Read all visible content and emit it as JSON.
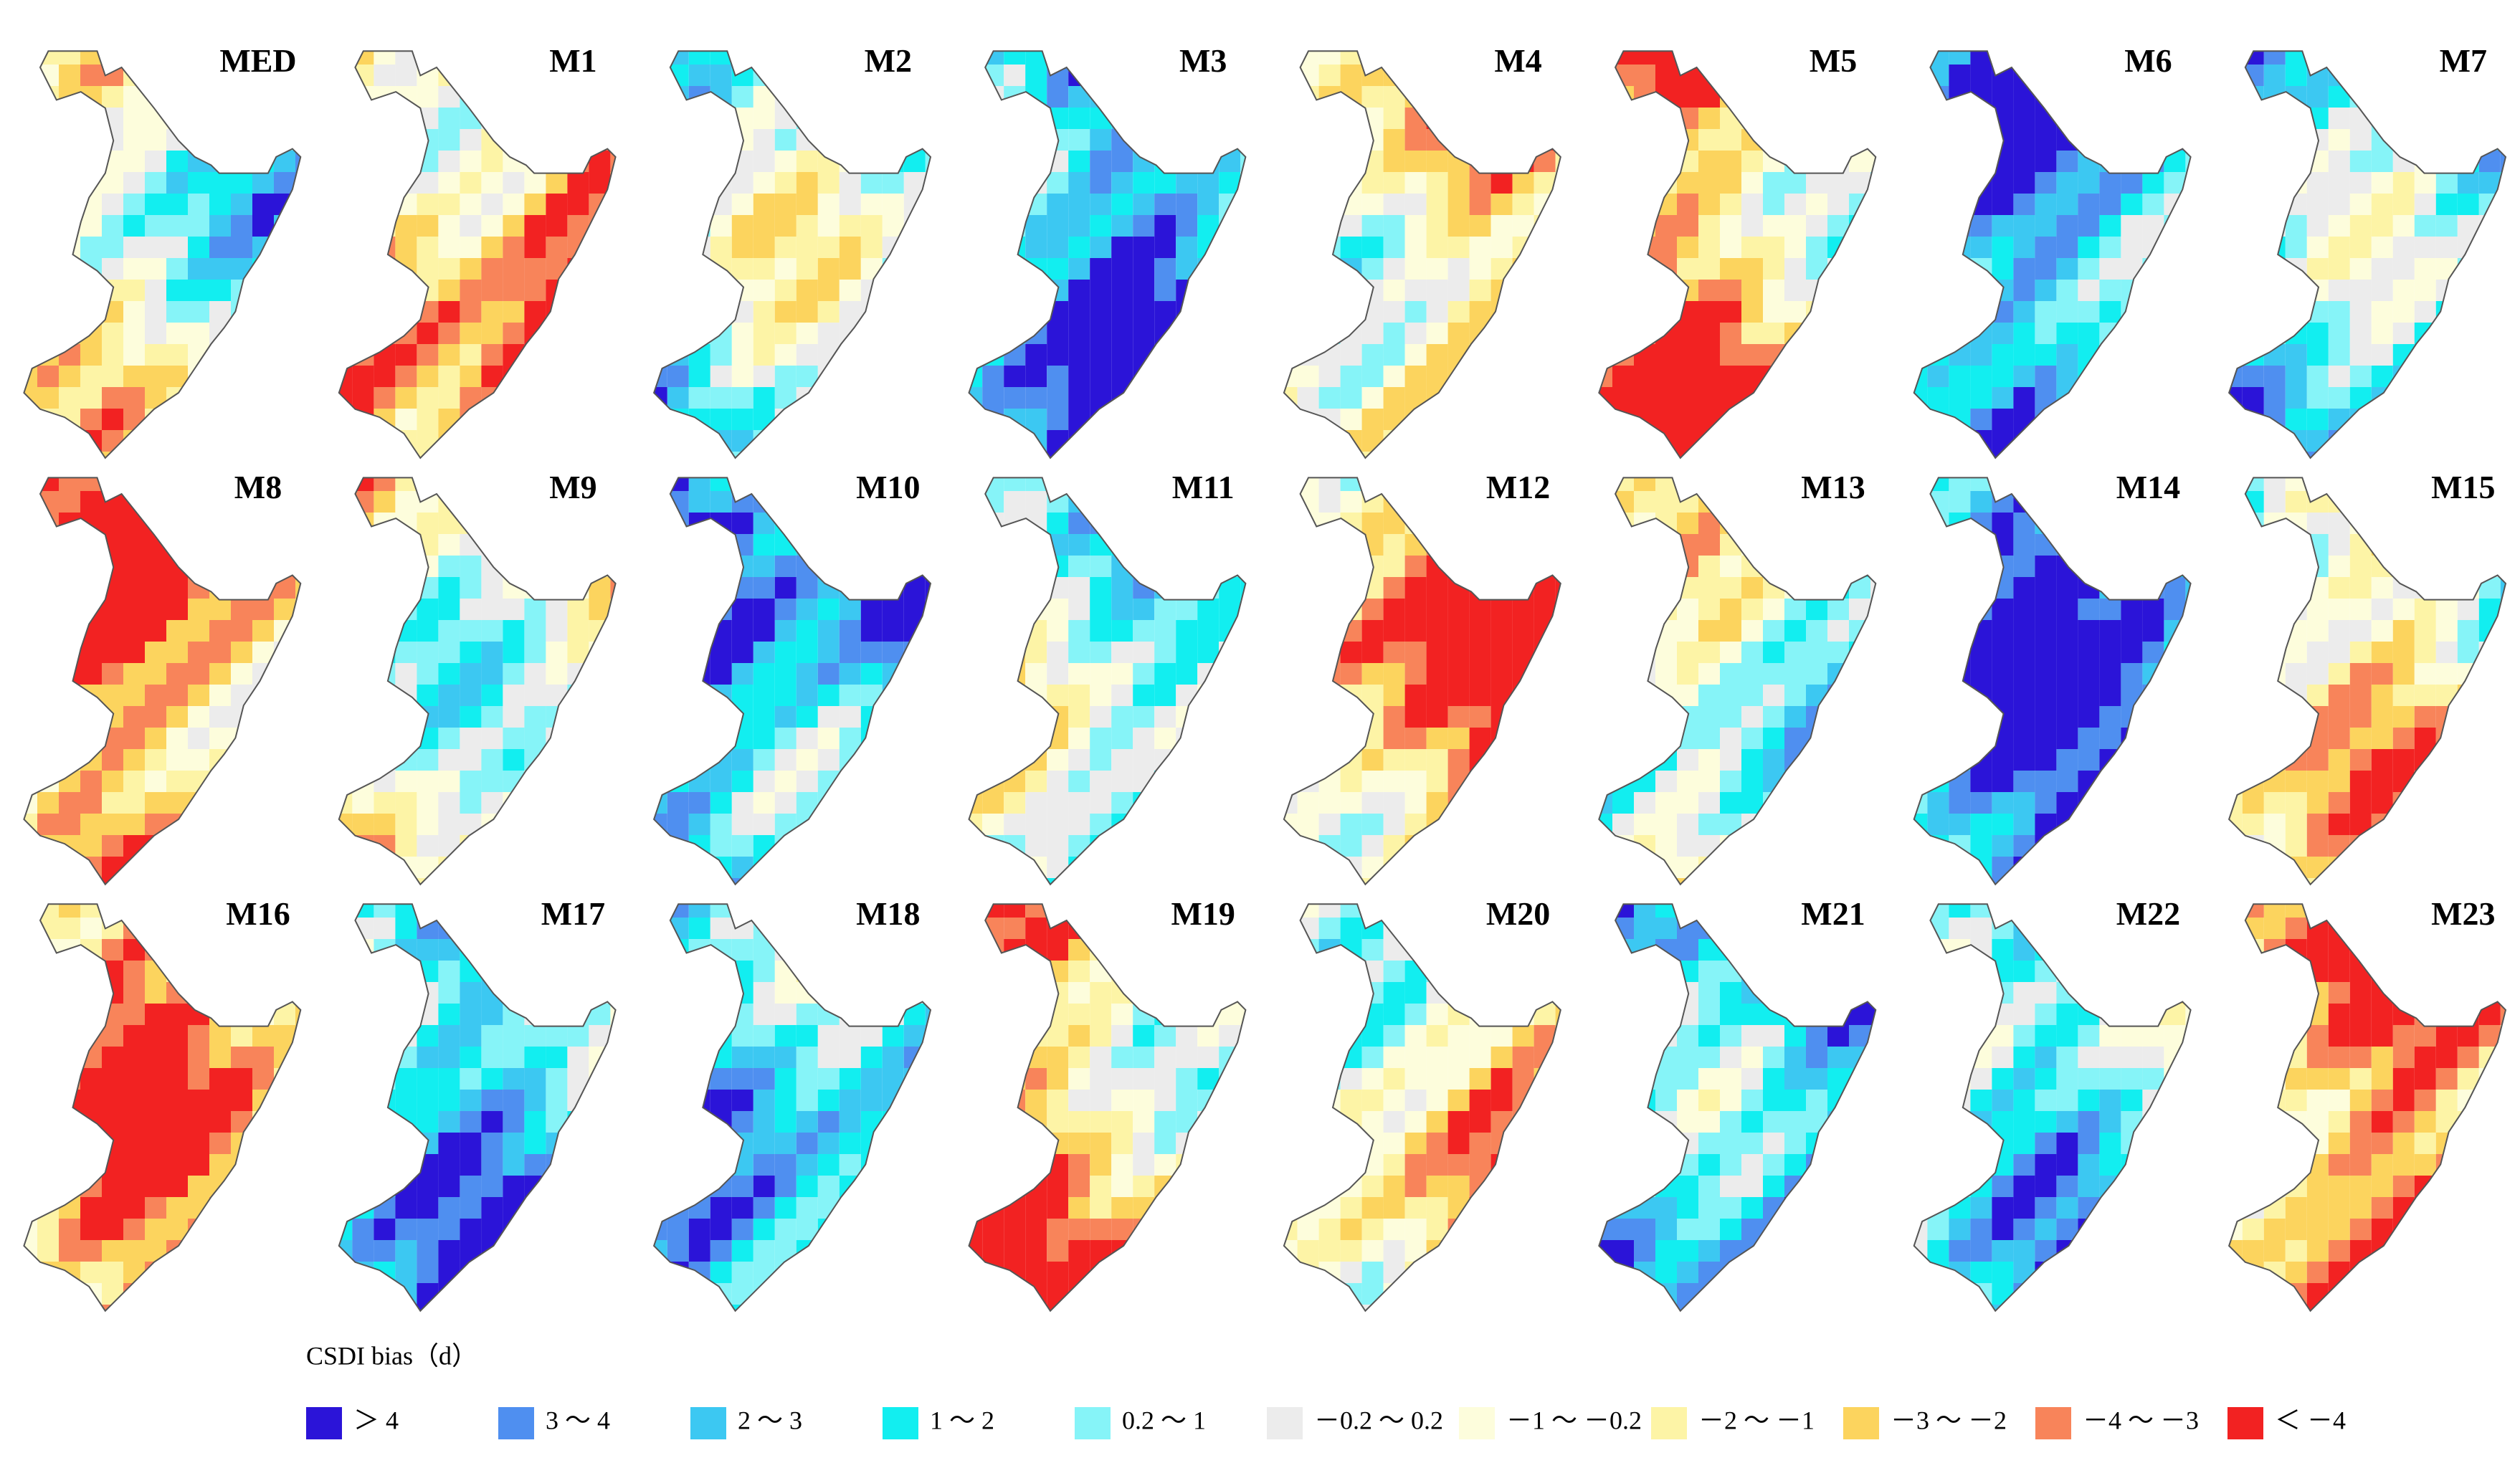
{
  "panels": [
    "MED",
    "M1",
    "M2",
    "M3",
    "M4",
    "M5",
    "M6",
    "M7",
    "M8",
    "M9",
    "M10",
    "M11",
    "M12",
    "M13",
    "M14",
    "M15",
    "M16",
    "M17",
    "M18",
    "M19",
    "M20",
    "M21",
    "M22",
    "M23"
  ],
  "legend": {
    "title": "CSDI bias（d）",
    "items": [
      {
        "label": "＞ 4",
        "color": "#2b14d8"
      },
      {
        "label": "3 ～ 4",
        "color": "#4f8ff0"
      },
      {
        "label": "2 ～ 3",
        "color": "#3cc8f2"
      },
      {
        "label": "1 ～ 2",
        "color": "#12eef0"
      },
      {
        "label": "0.2 ～ 1",
        "color": "#86f4f8"
      },
      {
        "label": "－0.2 ～ 0.2",
        "color": "#ececec"
      },
      {
        "label": "－1 ～ －0.2",
        "color": "#fdfddc"
      },
      {
        "label": "－2 ～ －1",
        "color": "#fdf4a6"
      },
      {
        "label": "－3 ～ －2",
        "color": "#fcd45e"
      },
      {
        "label": "－4 ～ －3",
        "color": "#f8845a"
      },
      {
        "label": "＜ －4",
        "color": "#f22222"
      }
    ]
  }
}
